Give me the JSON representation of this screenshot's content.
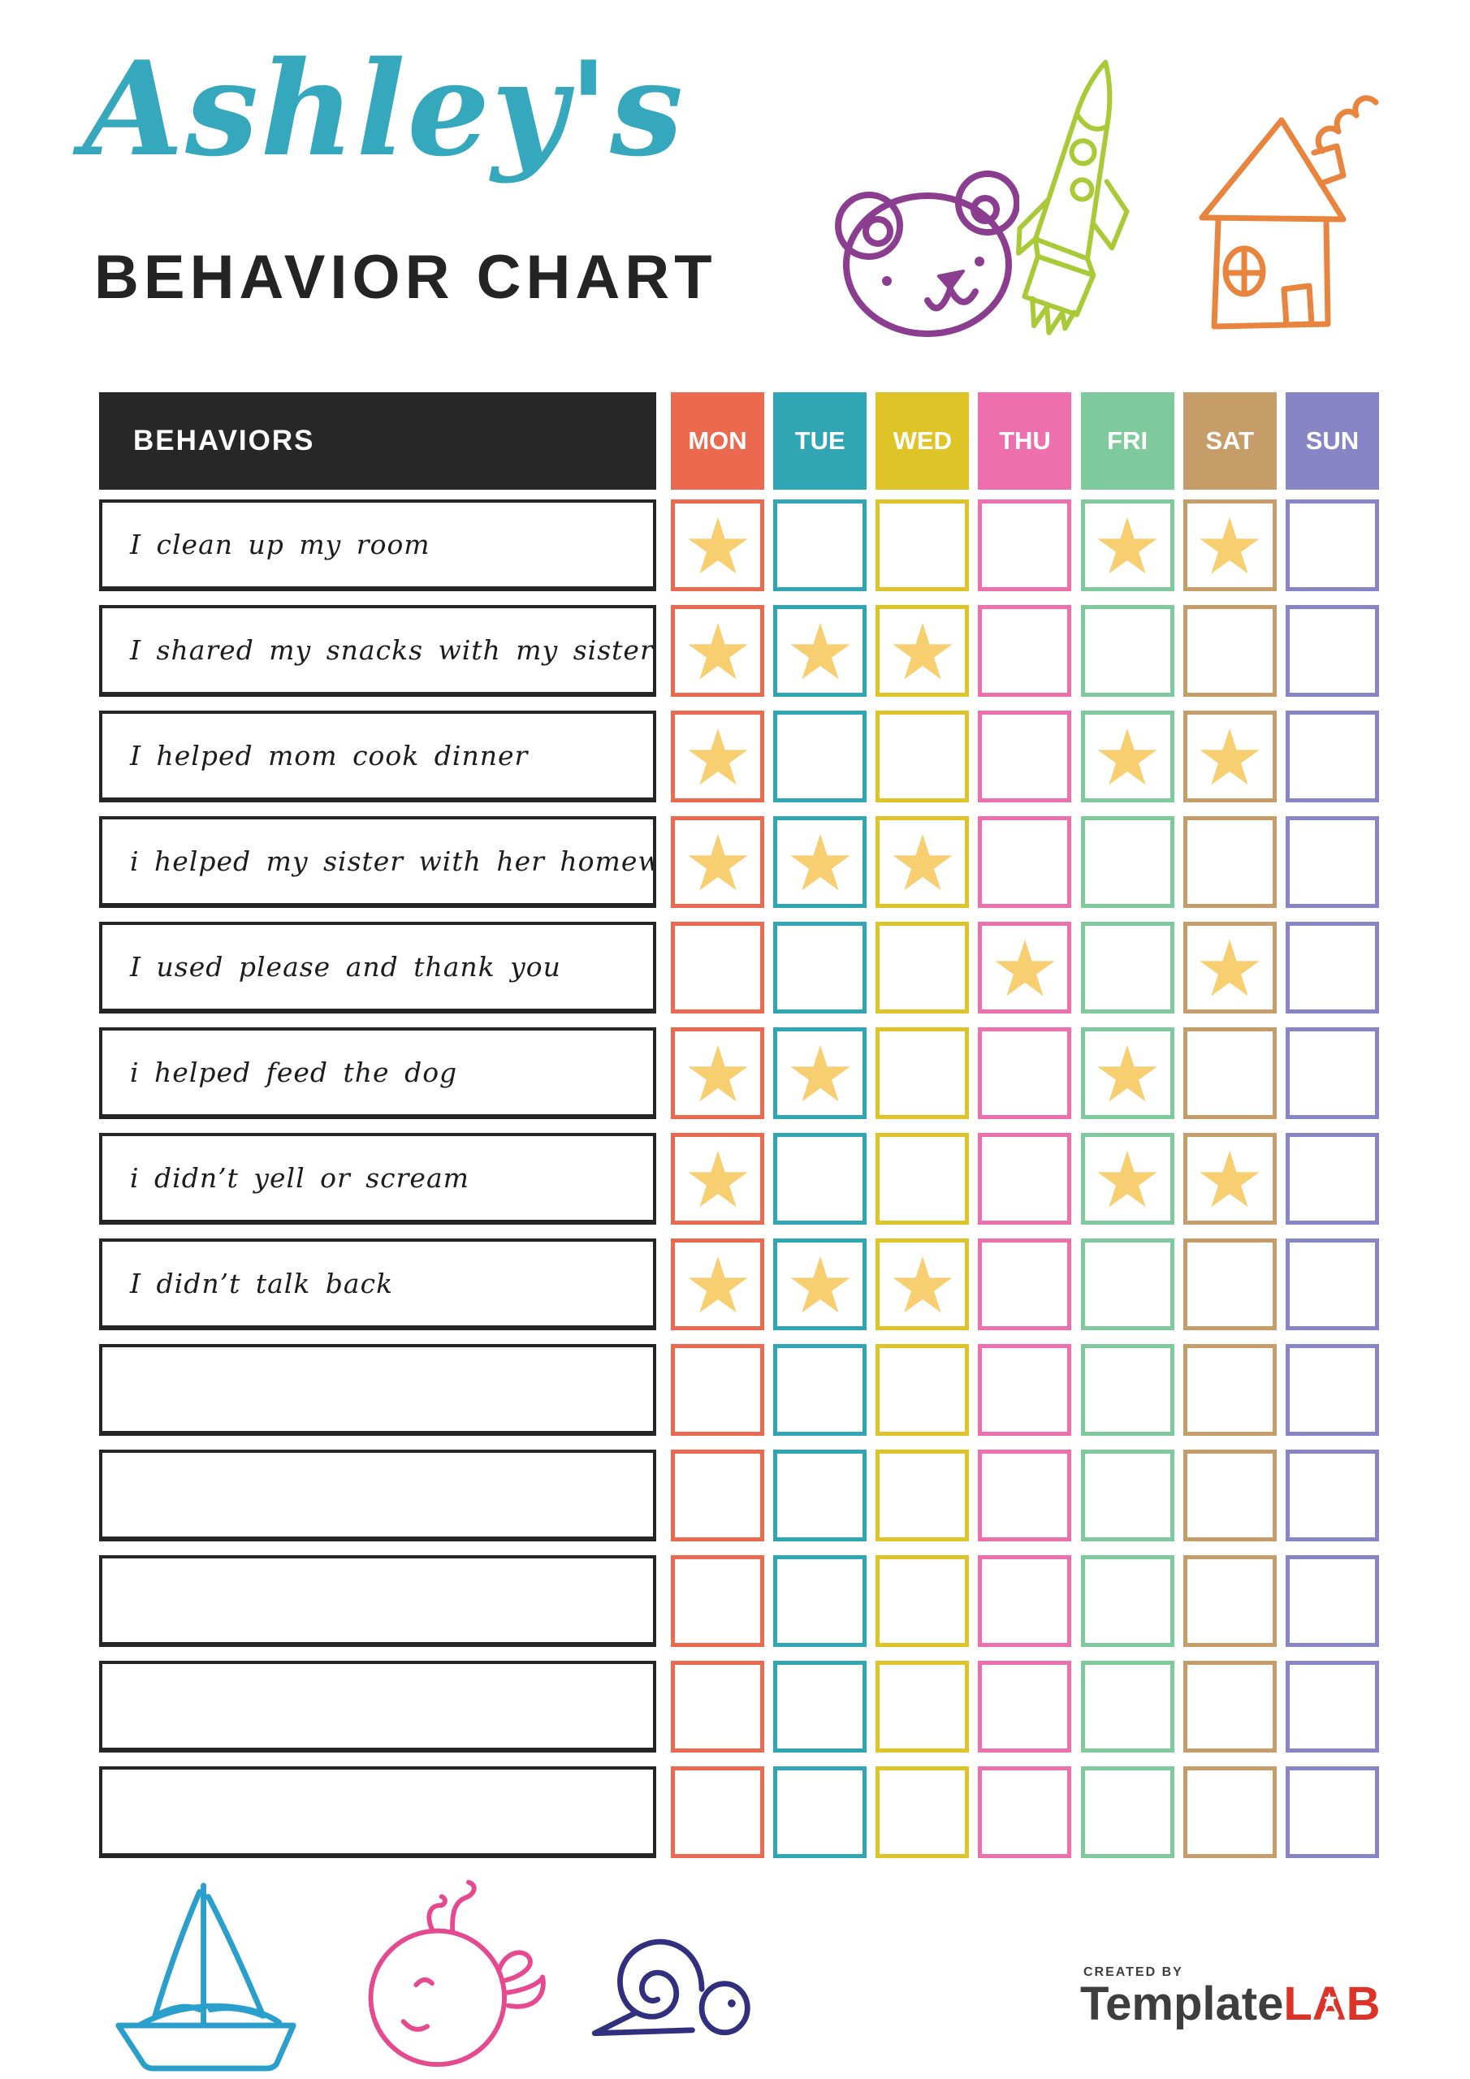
{
  "header": {
    "name_script": "Ashley's",
    "name_color": "#35A8BD",
    "title": "BEHAVIOR CHART",
    "title_color": "#242424",
    "doodles": [
      {
        "name": "bear-doodle",
        "color": "#8B3E8F"
      },
      {
        "name": "rocket-doodle",
        "color": "#A9C937"
      },
      {
        "name": "house-doodle",
        "color": "#E8843D"
      }
    ]
  },
  "table": {
    "behaviors_header": "BEHAVIORS",
    "header_bg": "#272727",
    "header_text_color": "#FFFFFF",
    "star_color": "#F7CE70",
    "days": [
      {
        "label": "MON",
        "color": "#EB6A4F"
      },
      {
        "label": "TUE",
        "color": "#30A6B5"
      },
      {
        "label": "WED",
        "color": "#DFC428"
      },
      {
        "label": "THU",
        "color": "#EE6FAD"
      },
      {
        "label": "FRI",
        "color": "#7FCA9C"
      },
      {
        "label": "SAT",
        "color": "#C69C68"
      },
      {
        "label": "SUN",
        "color": "#8885C6"
      }
    ],
    "rows": [
      {
        "label": "I clean up my room",
        "stars": [
          "MON",
          "FRI",
          "SAT"
        ]
      },
      {
        "label": "I shared my snacks with my sister",
        "stars": [
          "MON",
          "TUE",
          "WED"
        ]
      },
      {
        "label": "I helped mom cook dinner",
        "stars": [
          "MON",
          "FRI",
          "SAT"
        ]
      },
      {
        "label": "i helped my sister with her homework",
        "stars": [
          "MON",
          "TUE",
          "WED"
        ]
      },
      {
        "label": "I used please and thank you",
        "stars": [
          "THU",
          "SAT"
        ]
      },
      {
        "label": "i helped feed the dog",
        "stars": [
          "MON",
          "TUE",
          "FRI"
        ]
      },
      {
        "label": "i didn’t yell or scream",
        "stars": [
          "MON",
          "FRI",
          "SAT"
        ]
      },
      {
        "label": "I didn’t talk back",
        "stars": [
          "MON",
          "TUE",
          "WED"
        ]
      },
      {
        "label": "",
        "stars": []
      },
      {
        "label": "",
        "stars": []
      },
      {
        "label": "",
        "stars": []
      },
      {
        "label": "",
        "stars": []
      },
      {
        "label": "",
        "stars": []
      }
    ]
  },
  "footer": {
    "doodles": [
      {
        "name": "sailboat-doodle",
        "color": "#2B9FCB"
      },
      {
        "name": "whale-doodle",
        "color": "#E5498F"
      },
      {
        "name": "snail-doodle",
        "color": "#31307E"
      }
    ],
    "logo": {
      "created_by": "CREATED BY",
      "brand_primary": "Template",
      "brand_accent": "LAB",
      "brand_primary_color": "#3E3E3E",
      "brand_accent_color": "#DC3227"
    }
  }
}
